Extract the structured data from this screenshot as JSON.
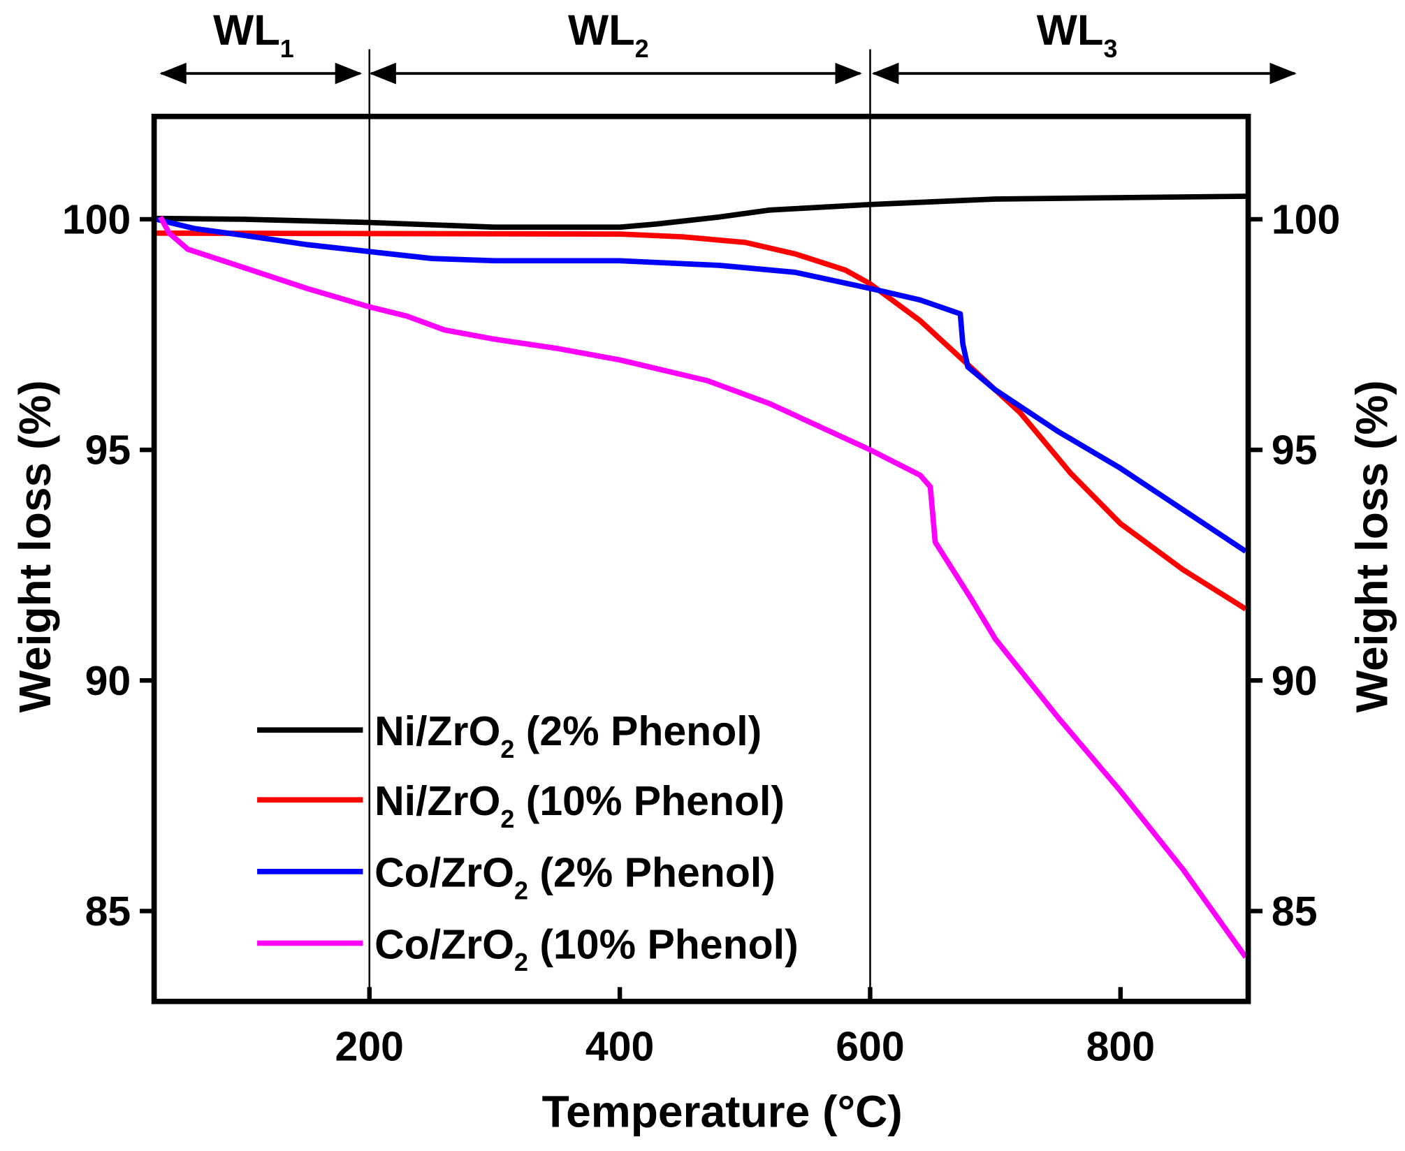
{
  "chart_data": {
    "type": "line",
    "xlabel": "Temperature (°C)",
    "ylabel": "Weight loss (%)",
    "ylabel_right": "Weight loss (%)",
    "xlim": [
      28,
      902
    ],
    "ylim": [
      83.04,
      102.23
    ],
    "xticks": [
      200,
      400,
      600,
      800
    ],
    "yticks": [
      85,
      90,
      95,
      100
    ],
    "grid": false,
    "legend_position": "bottom-left",
    "regions": [
      {
        "label": "WL",
        "sub": "1",
        "from": 30,
        "to": 200
      },
      {
        "label": "WL",
        "sub": "2",
        "from": 200,
        "to": 600
      },
      {
        "label": "WL",
        "sub": "3",
        "from": 600,
        "to": 900
      }
    ],
    "series": [
      {
        "name": "Ni/ZrO",
        "sub": "2",
        "suffix": " (2% Phenol)",
        "color": "#000000",
        "x": [
          30,
          100,
          200,
          300,
          400,
          430,
          480,
          520,
          600,
          700,
          900
        ],
        "y": [
          100.02,
          100.0,
          99.93,
          99.83,
          99.83,
          99.9,
          100.05,
          100.2,
          100.32,
          100.44,
          100.5
        ]
      },
      {
        "name": "Ni/ZrO",
        "sub": "2",
        "suffix": " (10% Phenol)",
        "color": "#ff0000",
        "x": [
          30,
          400,
          450,
          500,
          540,
          580,
          600,
          640,
          680,
          720,
          760,
          800,
          850,
          900
        ],
        "y": [
          99.7,
          99.68,
          99.62,
          99.5,
          99.25,
          98.9,
          98.6,
          97.8,
          96.8,
          95.8,
          94.5,
          93.4,
          92.4,
          91.55
        ]
      },
      {
        "name": "Co/ZrO",
        "sub": "2",
        "suffix": " (2% Phenol)",
        "color": "#0000ff",
        "x": [
          30,
          60,
          100,
          150,
          200,
          250,
          300,
          400,
          480,
          540,
          600,
          640,
          672,
          674,
          678,
          700,
          750,
          800,
          850,
          900
        ],
        "y": [
          100.0,
          99.8,
          99.65,
          99.45,
          99.3,
          99.15,
          99.1,
          99.1,
          99.0,
          98.85,
          98.5,
          98.25,
          97.95,
          97.3,
          96.8,
          96.3,
          95.4,
          94.6,
          93.7,
          92.8
        ]
      },
      {
        "name": "Co/ZrO",
        "sub": "2",
        "suffix": " (10% Phenol)",
        "color": "#ff00ff",
        "x": [
          33,
          40,
          55,
          100,
          150,
          200,
          230,
          260,
          300,
          350,
          400,
          470,
          520,
          600,
          640,
          648,
          652,
          680,
          700,
          750,
          800,
          850,
          900
        ],
        "y": [
          100.05,
          99.7,
          99.35,
          98.95,
          98.5,
          98.1,
          97.9,
          97.6,
          97.4,
          97.2,
          96.95,
          96.5,
          96.0,
          95.0,
          94.45,
          94.2,
          93.0,
          91.8,
          90.9,
          89.2,
          87.6,
          85.9,
          84.0
        ]
      }
    ]
  }
}
